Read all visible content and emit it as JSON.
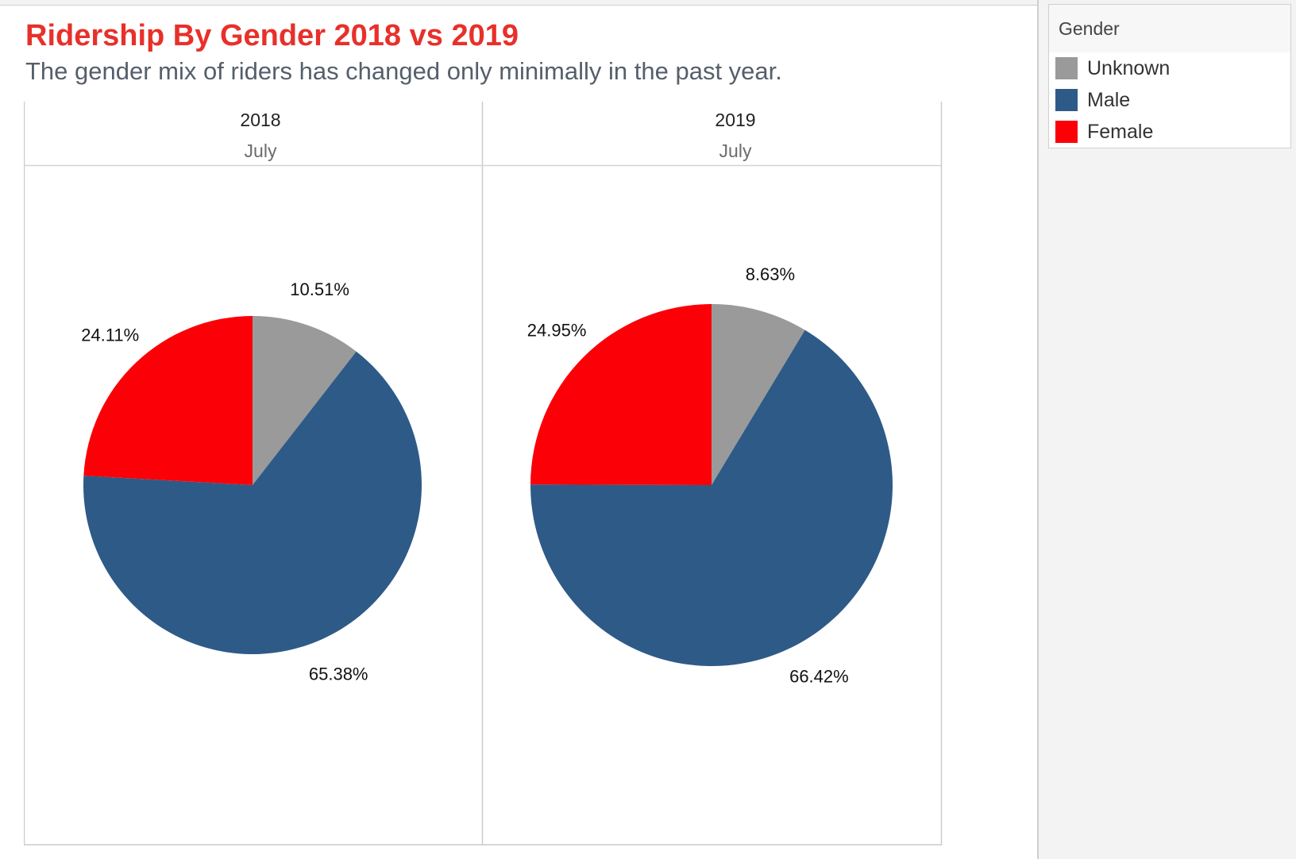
{
  "title": "Ridership By Gender 2018 vs 2019",
  "subtitle": "The gender mix of riders has changed only minimally in the past year.",
  "legend": {
    "title": "Gender",
    "items": [
      {
        "label": "Unknown",
        "color": "#9a9a9a"
      },
      {
        "label": "Male",
        "color": "#2e5a87"
      },
      {
        "label": "Female",
        "color": "#fb0007"
      }
    ]
  },
  "chart_data": [
    {
      "type": "pie",
      "header": "2018",
      "subheader": "July",
      "slices": [
        {
          "category": "Unknown",
          "value": 10.51,
          "label": "10.51%"
        },
        {
          "category": "Male",
          "value": 65.38,
          "label": "65.38%"
        },
        {
          "category": "Female",
          "value": 24.11,
          "label": "24.11%"
        }
      ]
    },
    {
      "type": "pie",
      "header": "2019",
      "subheader": "July",
      "slices": [
        {
          "category": "Unknown",
          "value": 8.63,
          "label": "8.63%"
        },
        {
          "category": "Male",
          "value": 66.42,
          "label": "66.42%"
        },
        {
          "category": "Female",
          "value": 24.95,
          "label": "24.95%"
        }
      ]
    }
  ]
}
